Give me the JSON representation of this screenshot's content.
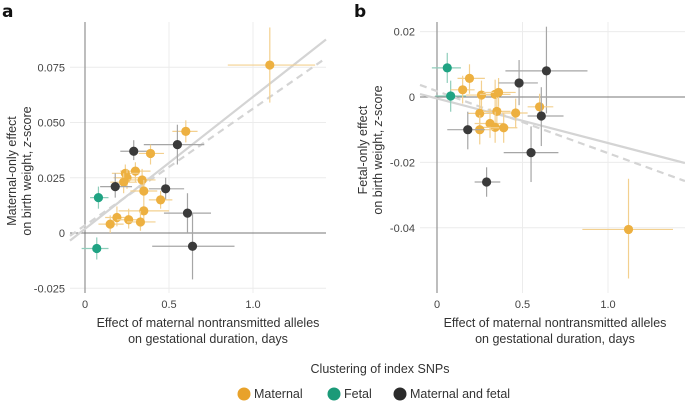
{
  "legend": {
    "title": "Clustering of index SNPs",
    "entries": [
      {
        "key": "maternal",
        "label": "Maternal",
        "color": "#E8A22A"
      },
      {
        "key": "fetal",
        "label": "Fetal",
        "color": "#1B9A78"
      },
      {
        "key": "both",
        "label": "Maternal and fetal",
        "color": "#2B2B2B"
      }
    ]
  },
  "chart_data": [
    {
      "type": "scatter",
      "panel": "a",
      "title": "",
      "xlabel": [
        "Effect of maternal nontransmitted alleles",
        "on gestational duration, days"
      ],
      "ylabel": [
        "Maternal-only effect",
        "on birth weight, z-score"
      ],
      "xlim": [
        -0.03,
        1.45
      ],
      "ylim": [
        -0.027,
        0.095
      ],
      "xticks": [
        {
          "v": 0,
          "label": "0"
        },
        {
          "v": 0.5,
          "label": "0.5"
        },
        {
          "v": 1.0,
          "label": "1.0"
        }
      ],
      "yticks": [
        {
          "v": -0.025,
          "label": "-0.025"
        },
        {
          "v": 0,
          "label": "0"
        },
        {
          "v": 0.025,
          "label": "0.025"
        },
        {
          "v": 0.05,
          "label": "0.050"
        },
        {
          "v": 0.075,
          "label": "0.075"
        }
      ],
      "grid": true,
      "regression_lines": [
        {
          "style": "solid",
          "x": [
            -0.09,
            1.45
          ],
          "y": [
            -0.0035,
            0.0885
          ]
        },
        {
          "style": "dashed",
          "x": [
            -0.09,
            1.45
          ],
          "y": [
            -0.0013,
            0.08
          ]
        }
      ],
      "points": [
        {
          "x": 1.1,
          "y": 0.076,
          "xerr": [
            0.85,
            1.37
          ],
          "yerr": [
            0.059,
            0.093
          ],
          "group": "maternal"
        },
        {
          "x": 0.6,
          "y": 0.046,
          "xerr": [
            0.52,
            0.67
          ],
          "yerr": [
            0.041,
            0.051
          ],
          "group": "maternal"
        },
        {
          "x": 0.55,
          "y": 0.04,
          "xerr": [
            0.35,
            0.71
          ],
          "yerr": [
            0.031,
            0.049
          ],
          "group": "both"
        },
        {
          "x": 0.29,
          "y": 0.037,
          "xerr": [
            0.21,
            0.38
          ],
          "yerr": [
            0.033,
            0.042
          ],
          "group": "both"
        },
        {
          "x": 0.39,
          "y": 0.036,
          "xerr": [
            0.32,
            0.47
          ],
          "yerr": [
            0.031,
            0.04
          ],
          "group": "maternal"
        },
        {
          "x": 0.3,
          "y": 0.028,
          "xerr": [
            0.21,
            0.39
          ],
          "yerr": [
            0.023,
            0.032
          ],
          "group": "maternal"
        },
        {
          "x": 0.24,
          "y": 0.027,
          "xerr": [
            0.16,
            0.32
          ],
          "yerr": [
            0.022,
            0.031
          ],
          "group": "maternal"
        },
        {
          "x": 0.25,
          "y": 0.025,
          "xerr": [
            0.17,
            0.33
          ],
          "yerr": [
            0.02,
            0.029
          ],
          "group": "maternal"
        },
        {
          "x": 0.34,
          "y": 0.024,
          "xerr": [
            0.26,
            0.42
          ],
          "yerr": [
            0.019,
            0.029
          ],
          "group": "maternal"
        },
        {
          "x": 0.23,
          "y": 0.023,
          "xerr": [
            0.15,
            0.31
          ],
          "yerr": [
            0.018,
            0.027
          ],
          "group": "maternal"
        },
        {
          "x": 0.18,
          "y": 0.021,
          "xerr": [
            0.09,
            0.28
          ],
          "yerr": [
            0.016,
            0.027
          ],
          "group": "both"
        },
        {
          "x": 0.48,
          "y": 0.02,
          "xerr": [
            0.38,
            0.59
          ],
          "yerr": [
            0.015,
            0.025
          ],
          "group": "both"
        },
        {
          "x": 0.35,
          "y": 0.019,
          "xerr": [
            0.27,
            0.43
          ],
          "yerr": [
            0.014,
            0.024
          ],
          "group": "maternal"
        },
        {
          "x": 0.08,
          "y": 0.016,
          "xerr": [
            0.03,
            0.14
          ],
          "yerr": [
            0.011,
            0.021
          ],
          "group": "fetal"
        },
        {
          "x": 0.45,
          "y": 0.015,
          "xerr": [
            0.38,
            0.52
          ],
          "yerr": [
            0.011,
            0.019
          ],
          "group": "maternal"
        },
        {
          "x": 0.35,
          "y": 0.01,
          "xerr": [
            0.2,
            0.5
          ],
          "yerr": [
            0.006,
            0.014
          ],
          "group": "maternal"
        },
        {
          "x": 0.61,
          "y": 0.009,
          "xerr": [
            0.47,
            0.75
          ],
          "yerr": [
            0.0,
            0.018
          ],
          "group": "both"
        },
        {
          "x": 0.19,
          "y": 0.007,
          "xerr": [
            0.12,
            0.27
          ],
          "yerr": [
            0.003,
            0.012
          ],
          "group": "maternal"
        },
        {
          "x": 0.26,
          "y": 0.006,
          "xerr": [
            0.19,
            0.34
          ],
          "yerr": [
            0.002,
            0.011
          ],
          "group": "maternal"
        },
        {
          "x": 0.33,
          "y": 0.005,
          "xerr": [
            0.25,
            0.42
          ],
          "yerr": [
            0.001,
            0.01
          ],
          "group": "maternal"
        },
        {
          "x": 0.15,
          "y": 0.004,
          "xerr": [
            0.08,
            0.23
          ],
          "yerr": [
            0.0,
            0.008
          ],
          "group": "maternal"
        },
        {
          "x": 0.07,
          "y": -0.007,
          "xerr": [
            -0.02,
            0.14
          ],
          "yerr": [
            -0.012,
            -0.002
          ],
          "group": "fetal"
        },
        {
          "x": 0.64,
          "y": -0.006,
          "xerr": [
            0.4,
            0.89
          ],
          "yerr": [
            -0.021,
            0.009
          ],
          "group": "both"
        }
      ]
    },
    {
      "type": "scatter",
      "panel": "b",
      "title": "",
      "xlabel": [
        "Effect of maternal nontransmitted alleles",
        "on gestational duration, days"
      ],
      "ylabel": [
        "Fetal-only effect",
        "on birth weight, z-score"
      ],
      "xlim": [
        -0.1,
        1.45
      ],
      "ylim": [
        -0.06,
        0.025
      ],
      "xticks": [
        {
          "v": 0,
          "label": "0"
        },
        {
          "v": 0.5,
          "label": "0.5"
        },
        {
          "v": 1.0,
          "label": "1.0"
        }
      ],
      "yticks": [
        {
          "v": -0.04,
          "label": "-0.04"
        },
        {
          "v": -0.02,
          "label": "-0.02"
        },
        {
          "v": 0,
          "label": "0"
        },
        {
          "v": 0.02,
          "label": "0.02"
        }
      ],
      "grid": true,
      "regression_lines": [
        {
          "style": "solid",
          "x": [
            -0.1,
            1.45
          ],
          "y": [
            0.0009,
            -0.0202
          ]
        },
        {
          "style": "dashed",
          "x": [
            -0.1,
            1.45
          ],
          "y": [
            0.0037,
            -0.0257
          ]
        }
      ],
      "points": [
        {
          "x": 0.06,
          "y": 0.0089,
          "xerr": [
            -0.03,
            0.14
          ],
          "yerr": [
            0.0043,
            0.0135
          ],
          "group": "fetal"
        },
        {
          "x": 0.08,
          "y": 0.0003,
          "xerr": [
            -0.01,
            0.17
          ],
          "yerr": [
            -0.0045,
            0.005
          ],
          "group": "fetal"
        },
        {
          "x": 0.19,
          "y": 0.0057,
          "xerr": [
            0.12,
            0.28
          ],
          "yerr": [
            0.001,
            0.01
          ],
          "group": "maternal"
        },
        {
          "x": 0.15,
          "y": 0.0022,
          "xerr": [
            0.08,
            0.22
          ],
          "yerr": [
            -0.002,
            0.0065
          ],
          "group": "maternal"
        },
        {
          "x": 0.26,
          "y": 0.0006,
          "xerr": [
            0.17,
            0.35
          ],
          "yerr": [
            -0.004,
            0.005
          ],
          "group": "maternal"
        },
        {
          "x": 0.34,
          "y": 0.0008,
          "xerr": [
            0.25,
            0.43
          ],
          "yerr": [
            -0.0035,
            0.0053
          ],
          "group": "maternal"
        },
        {
          "x": 0.36,
          "y": 0.0014,
          "xerr": [
            0.27,
            0.46
          ],
          "yerr": [
            -0.003,
            0.0058
          ],
          "group": "maternal"
        },
        {
          "x": 0.48,
          "y": 0.0043,
          "xerr": [
            0.36,
            0.59
          ],
          "yerr": [
            -0.0025,
            0.0113
          ],
          "group": "both"
        },
        {
          "x": 0.64,
          "y": 0.008,
          "xerr": [
            0.4,
            0.88
          ],
          "yerr": [
            -0.005,
            0.0215
          ],
          "group": "both"
        },
        {
          "x": 0.6,
          "y": -0.003,
          "xerr": [
            0.53,
            0.68
          ],
          "yerr": [
            -0.007,
            0.001
          ],
          "group": "maternal"
        },
        {
          "x": 0.61,
          "y": -0.0058,
          "xerr": [
            0.53,
            0.74
          ],
          "yerr": [
            -0.015,
            0.003
          ],
          "group": "both"
        },
        {
          "x": 0.25,
          "y": -0.005,
          "xerr": [
            0.18,
            0.33
          ],
          "yerr": [
            -0.0095,
            -0.0005
          ],
          "group": "maternal"
        },
        {
          "x": 0.35,
          "y": -0.0044,
          "xerr": [
            0.27,
            0.43
          ],
          "yerr": [
            -0.009,
            0.0
          ],
          "group": "maternal"
        },
        {
          "x": 0.46,
          "y": -0.0049,
          "xerr": [
            0.38,
            0.53
          ],
          "yerr": [
            -0.0095,
            -0.0005
          ],
          "group": "maternal"
        },
        {
          "x": 0.31,
          "y": -0.0081,
          "xerr": [
            0.22,
            0.39
          ],
          "yerr": [
            -0.0125,
            -0.0035
          ],
          "group": "maternal"
        },
        {
          "x": 0.34,
          "y": -0.0093,
          "xerr": [
            0.27,
            0.42
          ],
          "yerr": [
            -0.014,
            -0.0045
          ],
          "group": "maternal"
        },
        {
          "x": 0.39,
          "y": -0.0094,
          "xerr": [
            0.31,
            0.47
          ],
          "yerr": [
            -0.014,
            -0.005
          ],
          "group": "maternal"
        },
        {
          "x": 0.25,
          "y": -0.01,
          "xerr": [
            0.17,
            0.33
          ],
          "yerr": [
            -0.0145,
            -0.0055
          ],
          "group": "maternal"
        },
        {
          "x": 0.18,
          "y": -0.01,
          "xerr": [
            0.06,
            0.28
          ],
          "yerr": [
            -0.016,
            -0.0045
          ],
          "group": "both"
        },
        {
          "x": 0.55,
          "y": -0.017,
          "xerr": [
            0.39,
            0.71
          ],
          "yerr": [
            -0.026,
            -0.009
          ],
          "group": "both"
        },
        {
          "x": 0.29,
          "y": -0.026,
          "xerr": [
            0.22,
            0.37
          ],
          "yerr": [
            -0.0305,
            -0.0215
          ],
          "group": "both"
        },
        {
          "x": 1.12,
          "y": -0.0405,
          "xerr": [
            0.85,
            1.38
          ],
          "yerr": [
            -0.0555,
            -0.025
          ],
          "group": "maternal"
        }
      ]
    }
  ]
}
